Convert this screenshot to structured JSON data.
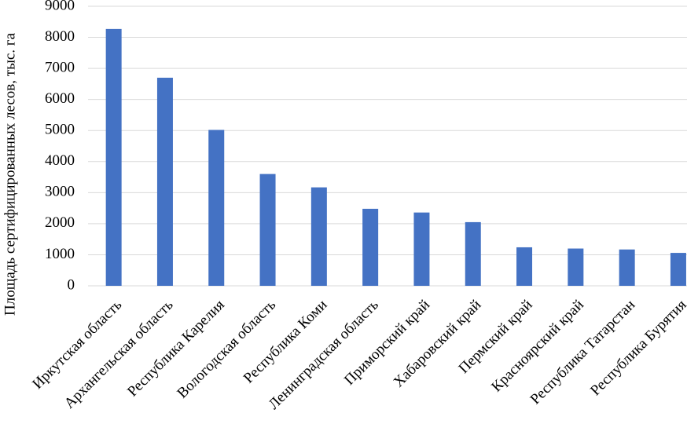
{
  "chart_data": {
    "type": "bar",
    "y_label": "Площадь сертифицированных лесов, тыс. га",
    "categories": [
      "Иркутская область",
      "Архангельская область",
      "Республика Карелия",
      "Вологодская область",
      "Республика Коми",
      "Ленинградская область",
      "Приморский край",
      "Хабаровский край",
      "Пермский край",
      "Красноярский край",
      "Республика Татарстан",
      "Республика Бурятия"
    ],
    "values": [
      8270,
      6700,
      5020,
      3600,
      3170,
      2480,
      2360,
      2050,
      1240,
      1200,
      1170,
      1060
    ],
    "color": "#4472c4",
    "ylim": [
      0,
      9000
    ],
    "yticks": [
      0,
      1000,
      2000,
      3000,
      4000,
      5000,
      6000,
      7000,
      8000,
      9000
    ],
    "grid": true
  }
}
